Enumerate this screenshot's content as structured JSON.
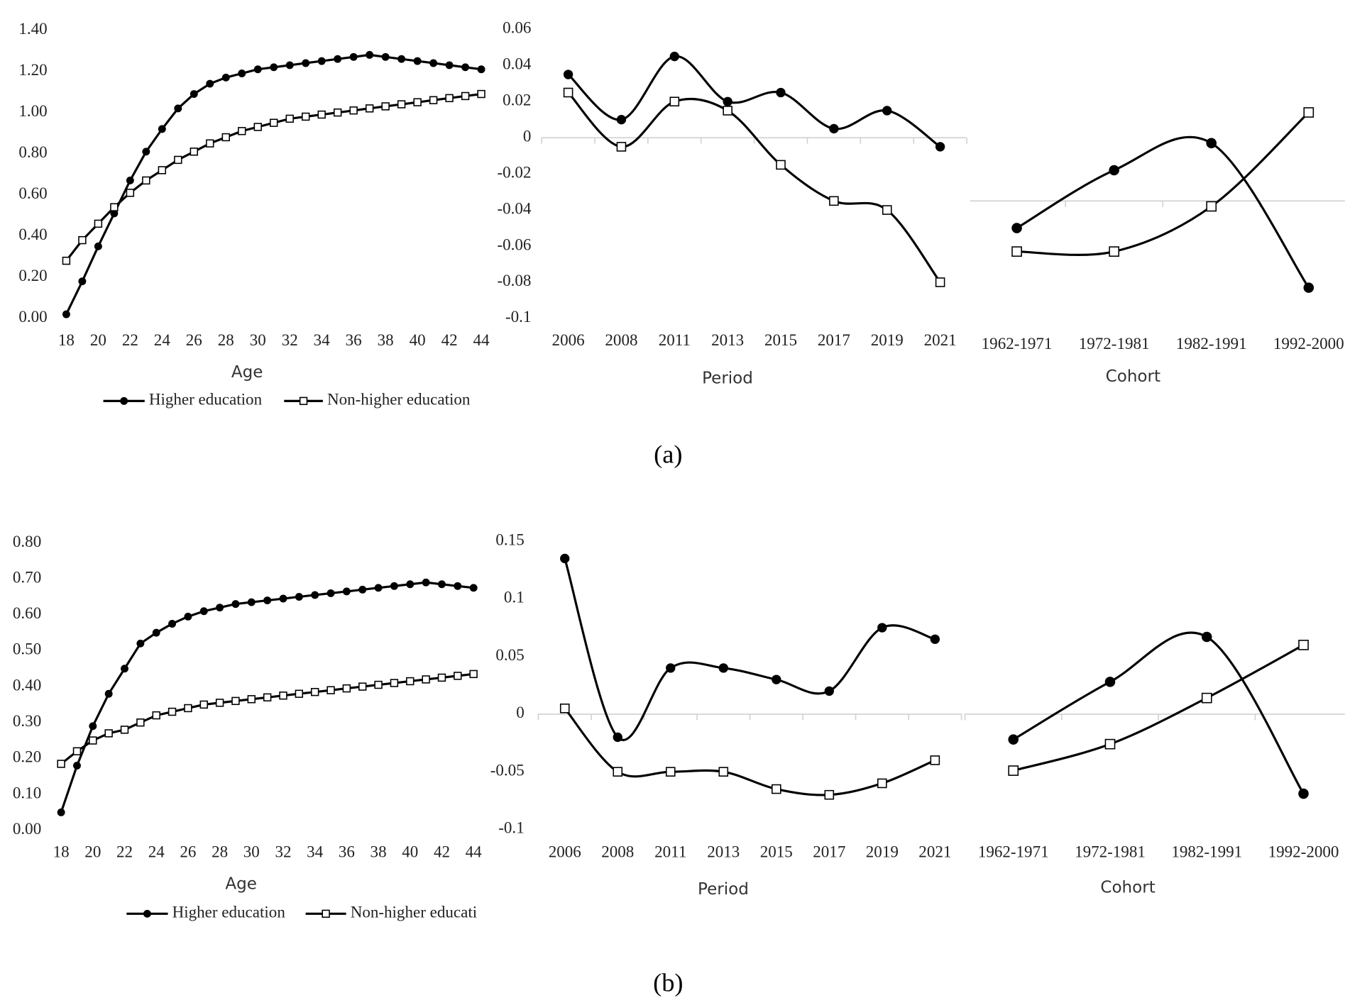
{
  "captions": [
    "(a)",
    "(b)"
  ],
  "chart_data": [
    {
      "type": "line",
      "x_label": "Age",
      "x": [
        18,
        19,
        20,
        21,
        22,
        23,
        24,
        25,
        26,
        27,
        28,
        29,
        30,
        31,
        32,
        33,
        34,
        35,
        36,
        37,
        38,
        39,
        40,
        41,
        42,
        43,
        44
      ],
      "xlim": [
        18,
        44
      ],
      "xticks": [
        18,
        20,
        22,
        24,
        26,
        28,
        30,
        32,
        34,
        36,
        38,
        40,
        42,
        44
      ],
      "ylim": [
        0,
        1.4
      ],
      "yticks": [
        {
          "value": 0,
          "label": "0.00"
        },
        {
          "value": 0.2,
          "label": "0.20"
        },
        {
          "value": 0.4,
          "label": "0.40"
        },
        {
          "value": 0.6,
          "label": "0.60"
        },
        {
          "value": 0.8,
          "label": "0.80"
        },
        {
          "value": 1,
          "label": "1.00"
        },
        {
          "value": 1.2,
          "label": "1.20"
        },
        {
          "value": 1.4,
          "label": "1.40"
        }
      ],
      "legend": "bottom",
      "smooth": false,
      "series": [
        {
          "name": "Higher education",
          "color": "#000000",
          "marker": "circle",
          "values": [
            0.02,
            0.18,
            0.35,
            0.51,
            0.67,
            0.81,
            0.92,
            1.02,
            1.09,
            1.14,
            1.17,
            1.19,
            1.21,
            1.22,
            1.23,
            1.24,
            1.25,
            1.26,
            1.27,
            1.28,
            1.27,
            1.26,
            1.25,
            1.24,
            1.23,
            1.22,
            1.21
          ]
        },
        {
          "name": "Non-higher education",
          "color": "#000000",
          "marker": "square",
          "values": [
            0.28,
            0.38,
            0.46,
            0.54,
            0.61,
            0.67,
            0.72,
            0.77,
            0.81,
            0.85,
            0.88,
            0.91,
            0.93,
            0.95,
            0.97,
            0.98,
            0.99,
            1.0,
            1.01,
            1.02,
            1.03,
            1.04,
            1.05,
            1.06,
            1.07,
            1.08,
            1.09
          ]
        }
      ]
    },
    {
      "type": "line",
      "x_label": "Period",
      "categories": [
        "2006",
        "2008",
        "2011",
        "2013",
        "2015",
        "2017",
        "2019",
        "2021"
      ],
      "ylim": [
        -0.1,
        0.06
      ],
      "yticks": [
        0.06,
        0.04,
        0.02,
        0,
        -0.02,
        -0.04,
        -0.06,
        -0.08,
        -0.1
      ],
      "smooth": true,
      "series": [
        {
          "color": "#000000",
          "marker": "circle",
          "values": [
            0.035,
            0.01,
            0.045,
            0.02,
            0.025,
            0.005,
            0.015,
            -0.005
          ]
        },
        {
          "color": "#000000",
          "marker": "square",
          "values": [
            0.025,
            -0.005,
            0.02,
            0.015,
            -0.015,
            -0.035,
            -0.04,
            -0.08
          ]
        }
      ]
    },
    {
      "type": "line",
      "x_label": "Cohort",
      "categories": [
        "1962-1971",
        "1972-1981",
        "1982-1991",
        "1992-2000"
      ],
      "ylim": [
        -0.065,
        0.095
      ],
      "smooth": true,
      "series": [
        {
          "color": "#000000",
          "marker": "circle",
          "values": [
            -0.015,
            0.017,
            0.032,
            -0.048
          ]
        },
        {
          "color": "#000000",
          "marker": "square",
          "values": [
            -0.028,
            -0.028,
            -0.003,
            0.049
          ]
        }
      ]
    },
    {
      "type": "line",
      "x_label": "Age",
      "x": [
        18,
        19,
        20,
        21,
        22,
        23,
        24,
        25,
        26,
        27,
        28,
        29,
        30,
        31,
        32,
        33,
        34,
        35,
        36,
        37,
        38,
        39,
        40,
        41,
        42,
        43,
        44
      ],
      "xlim": [
        18,
        44
      ],
      "xticks": [
        18,
        20,
        22,
        24,
        26,
        28,
        30,
        32,
        34,
        36,
        38,
        40,
        42,
        44
      ],
      "ylim": [
        0,
        0.8
      ],
      "yticks": [
        {
          "value": 0,
          "label": "0.00"
        },
        {
          "value": 0.1,
          "label": "0.10"
        },
        {
          "value": 0.2,
          "label": "0.20"
        },
        {
          "value": 0.3,
          "label": "0.30"
        },
        {
          "value": 0.4,
          "label": "0.40"
        },
        {
          "value": 0.5,
          "label": "0.50"
        },
        {
          "value": 0.6,
          "label": "0.60"
        },
        {
          "value": 0.7,
          "label": "0.70"
        },
        {
          "value": 0.8,
          "label": "0.80"
        }
      ],
      "legend": "bottom",
      "smooth": false,
      "series": [
        {
          "name": "Higher education",
          "color": "#000000",
          "marker": "circle",
          "values": [
            0.05,
            0.18,
            0.29,
            0.38,
            0.45,
            0.52,
            0.55,
            0.575,
            0.595,
            0.61,
            0.62,
            0.63,
            0.635,
            0.64,
            0.645,
            0.65,
            0.655,
            0.66,
            0.665,
            0.67,
            0.675,
            0.68,
            0.685,
            0.69,
            0.685,
            0.68,
            0.675
          ]
        },
        {
          "name": "Non-higher educati",
          "color": "#000000",
          "marker": "square",
          "values": [
            0.185,
            0.22,
            0.25,
            0.27,
            0.28,
            0.3,
            0.32,
            0.33,
            0.34,
            0.35,
            0.355,
            0.36,
            0.365,
            0.37,
            0.375,
            0.38,
            0.385,
            0.39,
            0.395,
            0.4,
            0.405,
            0.41,
            0.415,
            0.42,
            0.425,
            0.43,
            0.435
          ]
        }
      ]
    },
    {
      "type": "line",
      "x_label": "Period",
      "categories": [
        "2006",
        "2008",
        "2011",
        "2013",
        "2015",
        "2017",
        "2019",
        "2021"
      ],
      "ylim": [
        -0.1,
        0.15
      ],
      "yticks": [
        0.15,
        0.1,
        0.05,
        0,
        -0.05,
        -0.1
      ],
      "smooth": true,
      "series": [
        {
          "color": "#000000",
          "marker": "circle",
          "values": [
            0.135,
            -0.02,
            0.04,
            0.04,
            0.03,
            0.02,
            0.075,
            0.065
          ]
        },
        {
          "color": "#000000",
          "marker": "square",
          "values": [
            0.005,
            -0.05,
            -0.05,
            -0.05,
            -0.065,
            -0.07,
            -0.06,
            -0.04
          ]
        }
      ]
    },
    {
      "type": "line",
      "x_label": "Cohort",
      "categories": [
        "1962-1971",
        "1972-1981",
        "1982-1991",
        "1992-2000"
      ],
      "ylim": [
        -0.1,
        0.15
      ],
      "smooth": true,
      "series": [
        {
          "color": "#000000",
          "marker": "circle",
          "values": [
            -0.022,
            0.028,
            0.067,
            -0.069
          ]
        },
        {
          "color": "#000000",
          "marker": "square",
          "values": [
            -0.049,
            -0.026,
            0.014,
            0.06
          ]
        }
      ]
    }
  ]
}
